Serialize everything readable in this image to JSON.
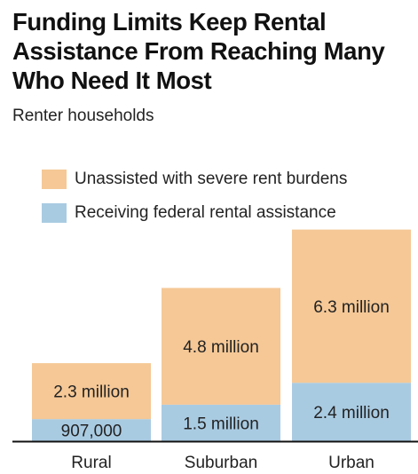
{
  "title": "Funding Limits Keep Rental Assistance From Reaching Many Who Need It Most",
  "subtitle": "Renter households",
  "legend": {
    "unassisted": "Unassisted with severe rent burdens",
    "assisted": "Receiving federal rental assistance"
  },
  "colors": {
    "unassisted": "#f5c896",
    "assisted": "#a9cbe2",
    "axis": "#111111",
    "text": "#222222"
  },
  "chart_data": {
    "type": "bar",
    "stacked": true,
    "categories": [
      "Rural",
      "Suburban",
      "Urban"
    ],
    "series": [
      {
        "name": "Receiving federal rental assistance",
        "values": [
          0.907,
          1.5,
          2.4
        ],
        "labels": [
          "907,000",
          "1.5 million",
          "2.4 million"
        ]
      },
      {
        "name": "Unassisted with severe rent burdens",
        "values": [
          2.3,
          4.8,
          6.3
        ],
        "labels": [
          "2.3 million",
          "4.8 million",
          "6.3 million"
        ]
      }
    ],
    "title": "Funding Limits Keep Rental Assistance From Reaching Many Who Need It Most",
    "ylabel": "",
    "xlabel": "",
    "unit": "million renter households",
    "ylim": [
      0,
      8.7
    ],
    "grid": false,
    "legend_position": "top-left"
  }
}
